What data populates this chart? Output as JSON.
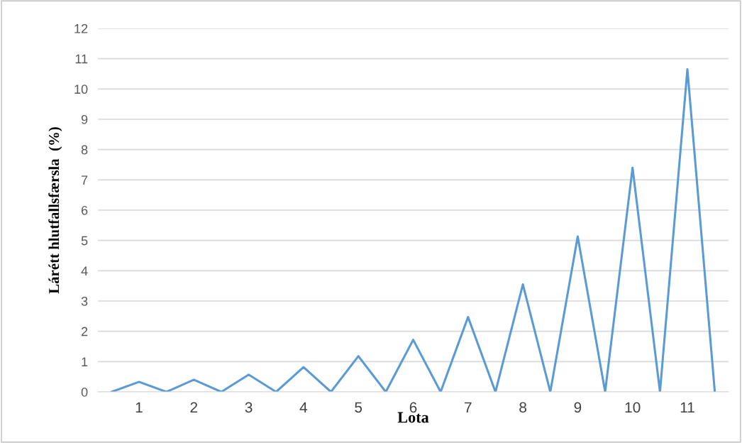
{
  "chart_data": {
    "type": "line",
    "xlabel": "Lota",
    "ylabel": "Lárétt hlutfallsfærsla  (%)",
    "categories": [
      null,
      "1",
      null,
      "2",
      null,
      "3",
      null,
      "4",
      null,
      "5",
      null,
      "6",
      null,
      "7",
      null,
      "8",
      null,
      "9",
      null,
      "10",
      null,
      "11",
      null
    ],
    "series": [
      {
        "color": "#5b9bd5",
        "values": [
          0,
          0.33,
          0,
          0.4,
          0,
          0.57,
          0,
          0.82,
          0,
          1.18,
          0,
          1.72,
          0,
          2.47,
          0,
          3.55,
          0,
          5.13,
          0,
          7.4,
          0,
          10.65,
          0
        ]
      }
    ],
    "ylim": [
      0,
      12
    ],
    "yticks": [
      0,
      1,
      2,
      3,
      4,
      5,
      6,
      7,
      8,
      9,
      10,
      11,
      12
    ],
    "grid": "y",
    "marker": "none",
    "line_style": "solid"
  }
}
